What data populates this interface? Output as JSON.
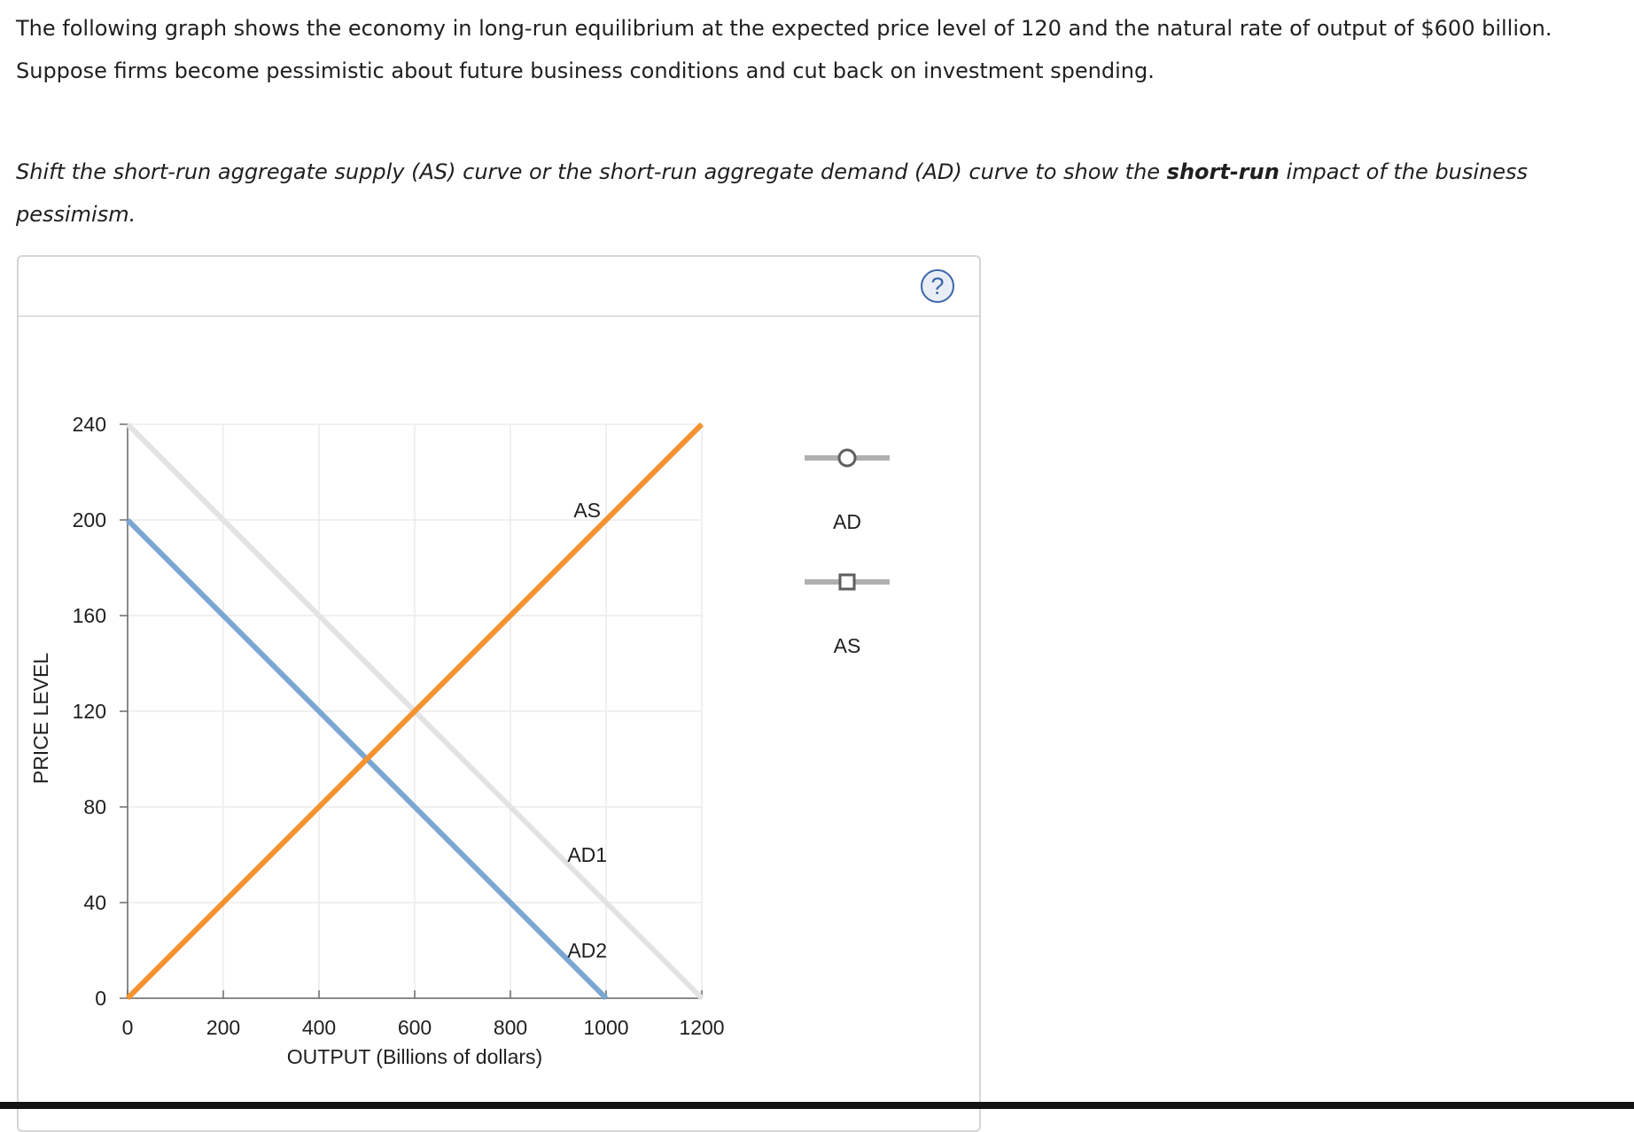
{
  "question": {
    "line1": "The following graph shows the economy in long-run equilibrium at the expected price level of 120 and the natural rate of output of $600 billion.",
    "line2": "Suppose firms become pessimistic about future business conditions and cut back on investment spending.",
    "instruction_before": "Shift the short-run aggregate supply (AS) curve or the short-run aggregate demand (AD) curve to show the ",
    "instruction_bold": "short-run",
    "instruction_after": " impact of the business pessimism."
  },
  "help": {
    "icon_text": "?"
  },
  "palette": {
    "title": "",
    "items": [
      {
        "label": "AD",
        "marker": "circle",
        "color": "#b0b0b0"
      },
      {
        "label": "AS",
        "marker": "square",
        "color": "#b0b0b0"
      }
    ]
  },
  "chart_data": {
    "type": "line",
    "title": "",
    "xlabel": "OUTPUT (Billions of dollars)",
    "ylabel": "PRICE LEVEL",
    "xlim": [
      0,
      1200
    ],
    "ylim": [
      0,
      240
    ],
    "xticks": [
      0,
      200,
      400,
      600,
      800,
      1000,
      1200
    ],
    "yticks": [
      0,
      40,
      80,
      120,
      160,
      200,
      240
    ],
    "grid": true,
    "series": [
      {
        "name": "AD1",
        "color": "#e3e3e3",
        "points": [
          [
            0,
            240
          ],
          [
            1200,
            0
          ]
        ],
        "label_at": [
          955,
          60
        ]
      },
      {
        "name": "AD2",
        "color": "#7aa6d2",
        "points": [
          [
            0,
            200
          ],
          [
            1000,
            0
          ]
        ],
        "label_at": [
          955,
          20
        ]
      },
      {
        "name": "AS",
        "color": "#f5922f",
        "points": [
          [
            0,
            0
          ],
          [
            1200,
            240
          ]
        ],
        "label_at": [
          955,
          204
        ]
      }
    ]
  }
}
